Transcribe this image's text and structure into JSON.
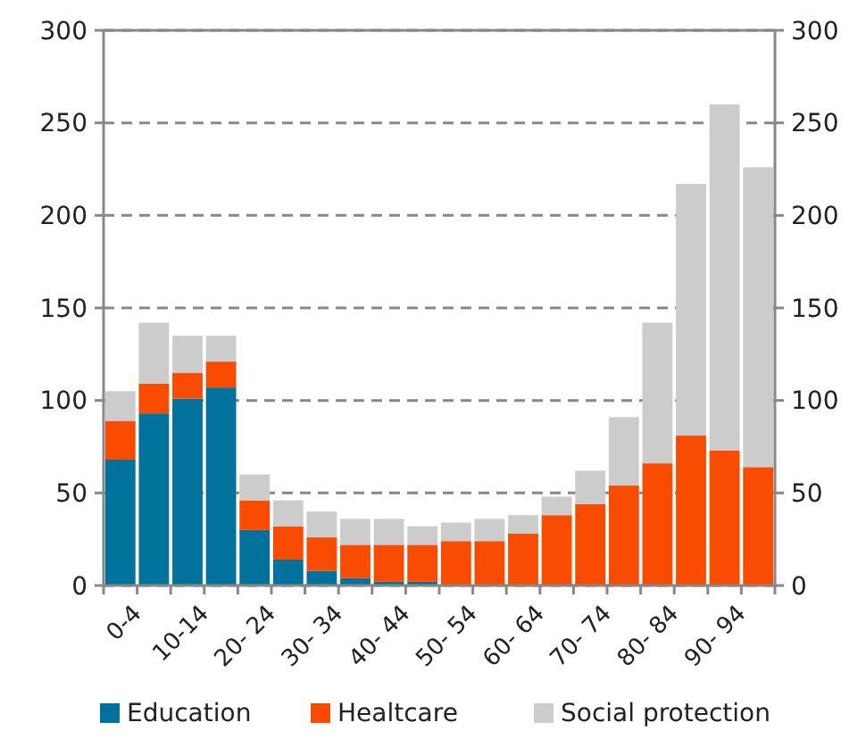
{
  "chart_data": {
    "type": "bar",
    "stacked": true,
    "categories": [
      "0-4",
      null,
      "10-14",
      null,
      "20- 24",
      null,
      "30- 34",
      null,
      "40- 44",
      null,
      "50- 54",
      null,
      "60- 64",
      null,
      "70- 74",
      null,
      "80- 84",
      null,
      "90- 94",
      null
    ],
    "series": [
      {
        "name": "Education",
        "color": "#00729c",
        "values": [
          68,
          93,
          101,
          107,
          30,
          14,
          8,
          4,
          2,
          2,
          0,
          0,
          0,
          0,
          0,
          0,
          0,
          0,
          0,
          0
        ]
      },
      {
        "name": "Healtcare",
        "color": "#f94c00",
        "values": [
          21,
          16,
          14,
          14,
          16,
          18,
          18,
          18,
          20,
          20,
          24,
          24,
          28,
          38,
          44,
          54,
          66,
          81,
          73,
          64
        ]
      },
      {
        "name": "Social protection",
        "color": "#cccccc",
        "values": [
          16,
          33,
          20,
          14,
          14,
          14,
          14,
          14,
          14,
          10,
          10,
          12,
          10,
          10,
          18,
          37,
          76,
          136,
          187,
          162
        ]
      }
    ],
    "ylim": [
      0,
      300
    ],
    "yticks": [
      0,
      50,
      100,
      150,
      200,
      250,
      300
    ],
    "y2lim": [
      0,
      300
    ],
    "y2ticks": [
      0,
      50,
      100,
      150,
      200,
      250,
      300
    ],
    "grid": "y",
    "legend": "bottom"
  }
}
